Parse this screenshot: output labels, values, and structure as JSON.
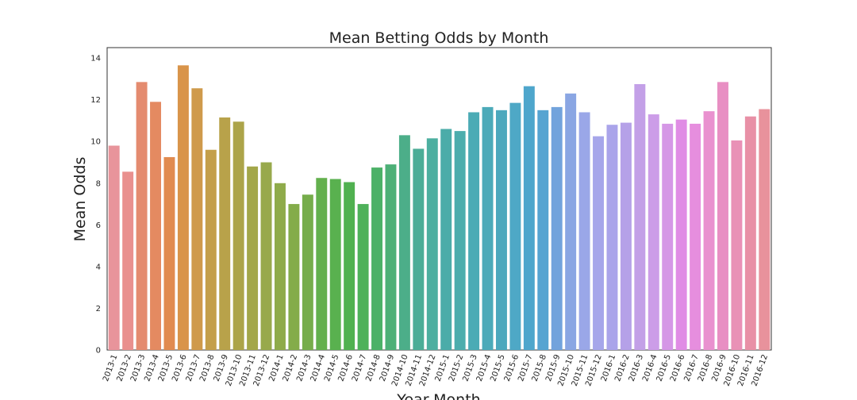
{
  "chart_data": {
    "type": "bar",
    "title": "Mean Betting Odds by Month",
    "xlabel": "Year-Month",
    "ylabel": "Mean Odds",
    "ylim": [
      0,
      14.5
    ],
    "yticks": [
      0,
      2,
      4,
      6,
      8,
      10,
      12,
      14
    ],
    "grid": false,
    "legend": "none",
    "categories": [
      "2013-1",
      "2013-2",
      "2013-3",
      "2013-4",
      "2013-5",
      "2013-6",
      "2013-7",
      "2013-8",
      "2013-9",
      "2013-10",
      "2013-11",
      "2013-12",
      "2014-1",
      "2014-2",
      "2014-3",
      "2014-4",
      "2014-5",
      "2014-6",
      "2014-7",
      "2014-8",
      "2014-9",
      "2014-10",
      "2014-11",
      "2014-12",
      "2015-1",
      "2015-2",
      "2015-3",
      "2015-4",
      "2015-5",
      "2015-6",
      "2015-7",
      "2015-8",
      "2015-9",
      "2015-10",
      "2015-11",
      "2015-12",
      "2016-1",
      "2016-2",
      "2016-3",
      "2016-4",
      "2016-5",
      "2016-6",
      "2016-7",
      "2016-8",
      "2016-9",
      "2016-10",
      "2016-11",
      "2016-12"
    ],
    "values": [
      9.8,
      8.55,
      12.85,
      11.9,
      9.25,
      13.65,
      12.55,
      9.6,
      11.15,
      10.95,
      8.8,
      9.0,
      8.0,
      7.0,
      7.45,
      8.25,
      8.2,
      8.05,
      7.0,
      8.75,
      8.9,
      10.3,
      9.65,
      10.15,
      10.6,
      10.5,
      11.4,
      11.65,
      11.5,
      11.85,
      12.65,
      11.5,
      11.65,
      12.3,
      11.4,
      10.25,
      10.8,
      10.9,
      12.75,
      11.3,
      10.85,
      11.05,
      10.85,
      11.45,
      12.85,
      10.05,
      11.2,
      11.55
    ],
    "colors": [
      "#e8949b",
      "#e9908e",
      "#e48b6f",
      "#e48a61",
      "#e18b50",
      "#d9944a",
      "#cf9a4b",
      "#c49f4a",
      "#b8a24a",
      "#aca449",
      "#a3a749",
      "#98a94c",
      "#8fab4a",
      "#84ac4a",
      "#76ad4b",
      "#63b04d",
      "#59b14f",
      "#50b150",
      "#4eb15a",
      "#4cb168",
      "#4db077",
      "#4cae89",
      "#4bad97",
      "#4cafa0",
      "#4baca9",
      "#4cadad",
      "#4babb5",
      "#4caab9",
      "#4ca8bd",
      "#4ea8c6",
      "#4ea6cc",
      "#56a4d1",
      "#72a3dc",
      "#8aa6e3",
      "#9aa7e8",
      "#a6a6ea",
      "#aaa4ea",
      "#b5a1e8",
      "#c3a0e7",
      "#cc9de8",
      "#d597e6",
      "#e08ce5",
      "#e68ede",
      "#e991cf",
      "#e88fc3",
      "#e991b6",
      "#e890a6",
      "#e8929c"
    ]
  }
}
